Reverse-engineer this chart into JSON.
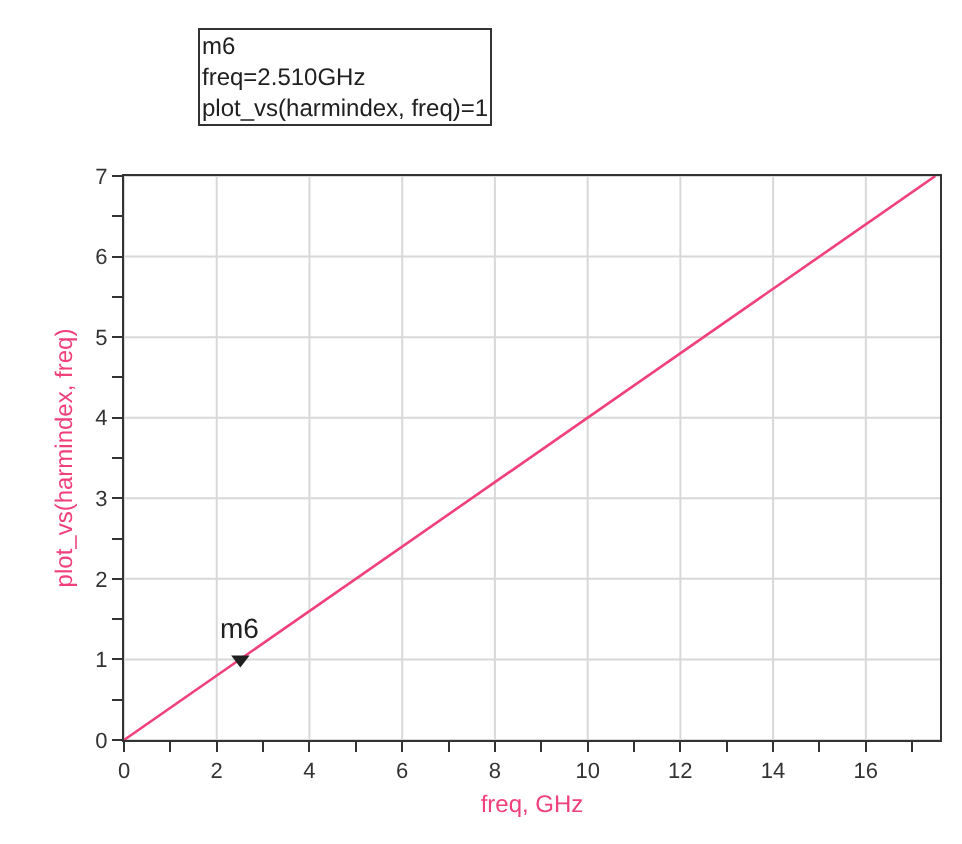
{
  "chart_data": {
    "type": "line",
    "xlabel": "freq, GHz",
    "ylabel": "plot_vs(harmindex, freq)",
    "x": [
      0,
      17.5
    ],
    "series": [
      {
        "color": "#f0407a",
        "values": [
          0,
          7
        ]
      }
    ],
    "annotations": [
      "m6\nfreq=2.510GHz\nplot_vs(harmindex, freq)=1",
      {
        "text": "m6",
        "x": 2.51,
        "y": 1
      }
    ],
    "xlim": [
      0,
      17.6
    ],
    "xticks": [
      0,
      {
        "value": 1,
        "label": null
      },
      2,
      {
        "value": 3,
        "label": null
      },
      4,
      {
        "value": 5,
        "label": null
      },
      6,
      {
        "value": 7,
        "label": null
      },
      8,
      {
        "value": 9,
        "label": null
      },
      10,
      {
        "value": 11,
        "label": null
      },
      12,
      {
        "value": 13,
        "label": null
      },
      14,
      {
        "value": 15,
        "label": null
      },
      16,
      {
        "value": 17,
        "label": null
      }
    ],
    "ylim": [
      0,
      7
    ],
    "yticks": [
      0,
      {
        "value": 0.5,
        "label": null
      },
      1,
      {
        "value": 1.5,
        "label": null
      },
      2,
      {
        "value": 2.5,
        "label": null
      },
      3,
      {
        "value": 3.5,
        "label": null
      },
      4,
      {
        "value": 4.5,
        "label": null
      },
      5,
      {
        "value": 5.5,
        "label": null
      },
      6,
      {
        "value": 6.5,
        "label": null
      },
      7
    ],
    "grid": true,
    "marker": "none",
    "line_style": "solid"
  }
}
